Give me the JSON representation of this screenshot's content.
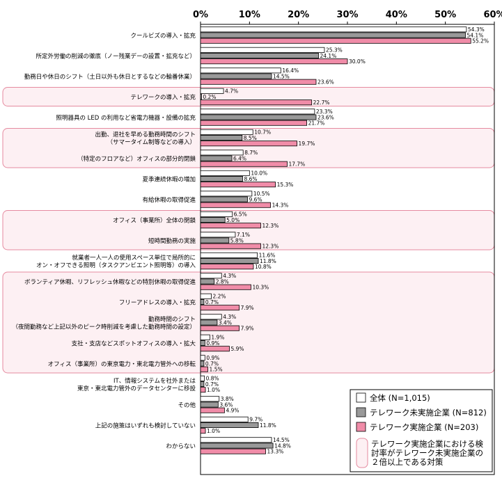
{
  "chart_data": {
    "type": "bar",
    "orientation": "horizontal",
    "xlim": [
      0,
      60
    ],
    "x_ticks": [
      "0%",
      "10%",
      "20%",
      "30%",
      "40%",
      "50%",
      "60%"
    ],
    "grid": false,
    "legend_position": "bottom-right",
    "colors": {
      "all": "#ffffff",
      "non_implementing": "#999999",
      "implementing": "#f08ca8",
      "highlight_fill": "#fdf0f3",
      "highlight_stroke": "#e58a9f"
    },
    "categories": [
      "クールビズの導入・拡充",
      "所定外労働の削減の徹底（ノー残業デーの設置・拡充など）",
      "勤務日や休日のシフト（土日以外も休日とするなどの輪番休業）",
      "テレワークの導入・拡充",
      "照明器具の LED の利用など省電力機器・設備の拡充",
      "出勤、退社を早める勤務時間のシフト\n（サマータイム制等などの導入）",
      "（特定のフロアなど）オフィスの部分的閉鎖",
      "夏季連続休暇の増加",
      "有給休暇の取得促進",
      "オフィス（事業所）全体の閉鎖",
      "短時間勤務の実施",
      "就業者一人一人の使用スペース単位で局所的に\nオン・オフできる照明（タスクアンビエント照明等）の導入",
      "ボランティア休暇、リフレッシュ休暇などの特別休暇の取得促進",
      "フリーアドレスの導入・拡充",
      "勤務時間のシフト\n（夜間勤務など上記以外のピーク時削減を考慮した勤務時間の設定）",
      "支社・支店などスポットオフィスの導入・拡大",
      "オフィス（事業所）の東京電力・東北電力管外への移転",
      "IT、情報システムを社外または\n東京・東北電力管外のデータセンターに移設",
      "その他",
      "上記の施策はいずれも検討していない",
      "わからない"
    ],
    "highlighted_categories": [
      3,
      5,
      6,
      9,
      10,
      12,
      13,
      14,
      15,
      16
    ],
    "series": [
      {
        "name": "全体 (N=1,015)",
        "values": [
          54.3,
          25.3,
          16.4,
          4.7,
          23.3,
          10.7,
          8.7,
          10.0,
          10.5,
          6.5,
          7.1,
          11.6,
          4.3,
          2.2,
          4.3,
          1.9,
          0.9,
          0.8,
          3.8,
          9.7,
          14.5
        ]
      },
      {
        "name": "テレワーク未実施企業 (N=812)",
        "values": [
          54.1,
          24.1,
          14.5,
          0.2,
          23.6,
          8.5,
          6.4,
          8.6,
          9.6,
          5.0,
          5.8,
          11.8,
          2.8,
          0.7,
          3.4,
          0.9,
          0.7,
          0.7,
          3.6,
          11.8,
          14.8
        ]
      },
      {
        "name": "テレワーク実施企業 (N=203)",
        "values": [
          55.2,
          30.0,
          23.6,
          22.7,
          21.7,
          19.7,
          17.7,
          15.3,
          14.3,
          12.3,
          12.3,
          10.8,
          10.3,
          7.9,
          7.9,
          5.9,
          1.5,
          1.0,
          4.9,
          1.0,
          13.3
        ]
      }
    ],
    "value_labels": [
      [
        "54.3%",
        "25.3%",
        "16.4%",
        "4.7%",
        "23.3%",
        "10.7%",
        "8.7%",
        "10.0%",
        "10.5%",
        "6.5%",
        "7.1%",
        "11.6%",
        "4.3%",
        "2.2%",
        "4.3%",
        "1.9%",
        "0.9%",
        "0.8%",
        "3.8%",
        "9.7%",
        "14.5%"
      ],
      [
        "54.1%",
        "24.1%",
        "14.5%",
        "0.2%",
        "23.6%",
        "8.5%",
        "6.4%",
        "8.6%",
        "9.6%",
        "5.0%",
        "5.8%",
        "11.8%",
        "2.8%",
        "0.7%",
        "3.4%",
        "0.9%",
        "0.7%",
        "0.7%",
        "3.6%",
        "11.8%",
        "14.8%"
      ],
      [
        "55.2%",
        "30.0%",
        "23.6%",
        "22.7%",
        "21.7%",
        "19.7%",
        "17.7%",
        "15.3%",
        "14.3%",
        "12.3%",
        "12.3%",
        "10.8%",
        "10.3%",
        "7.9%",
        "7.9%",
        "5.9%",
        "1.5%",
        "1.0%",
        "4.9%",
        "1.0%",
        "13.3%"
      ]
    ],
    "legend": {
      "entries": [
        "全体 (N=1,015)",
        "テレワーク未実施企業 (N=812)",
        "テレワーク実施企業 (N=203)"
      ],
      "highlight_note": "テレワーク実施企業における検討率がテレワーク未実施企業の2倍以上である対策",
      "highlight_note_lines": [
        "テレワーク実施企業における検",
        "討率がテレワーク未実施企業の",
        "２倍以上である対策"
      ]
    }
  }
}
